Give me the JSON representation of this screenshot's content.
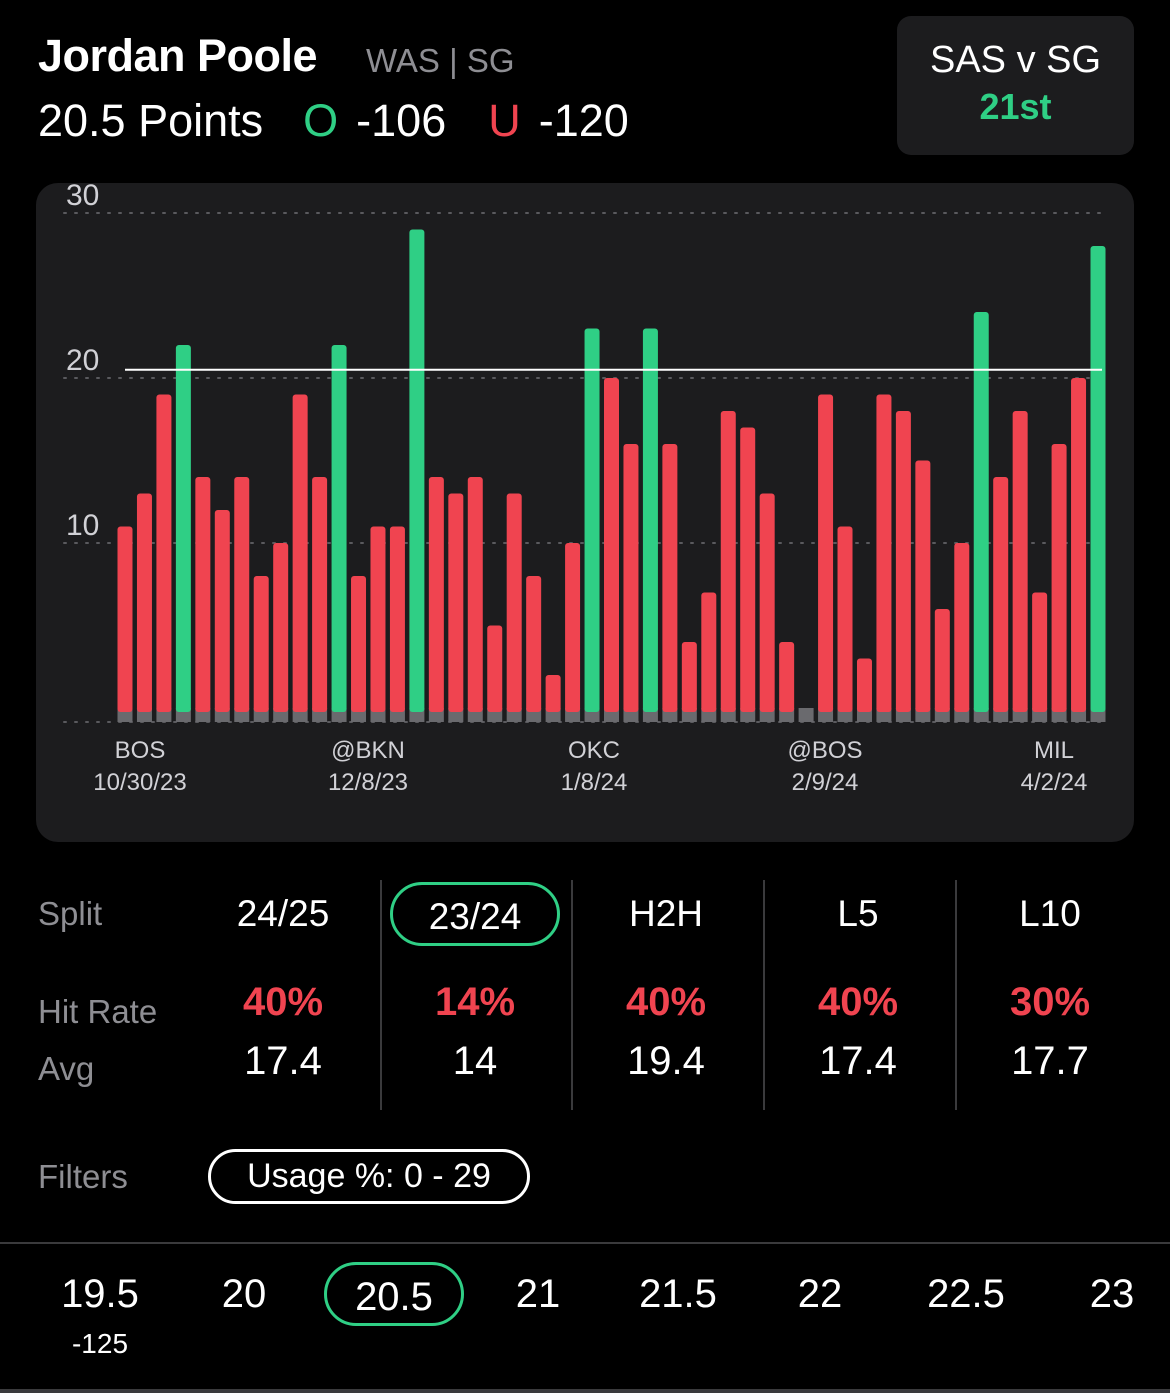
{
  "header": {
    "player_name": "Jordan Poole",
    "team_position": "WAS | SG",
    "prop": "20.5 Points",
    "over_label": "O",
    "over_odds": "-106",
    "under_label": "U",
    "under_odds": "-120"
  },
  "matchup": {
    "title": "SAS v SG",
    "rank": "21st"
  },
  "colors": {
    "over": "#2fcf85",
    "under": "#f04450",
    "card": "#1c1c1e",
    "muted": "#8e8e93"
  },
  "chart_data": {
    "type": "bar",
    "line": 20.5,
    "ylim": [
      -1,
      30
    ],
    "yticks": [
      10,
      20,
      30
    ],
    "grid": "dotted horizontal",
    "values": [
      11,
      13,
      19,
      22,
      14,
      12,
      14,
      8,
      10,
      19,
      14,
      22,
      8,
      11,
      11,
      29,
      14,
      13,
      14,
      5,
      13,
      8,
      2,
      10,
      23,
      20,
      16,
      23,
      16,
      4,
      7,
      18,
      17,
      13,
      4,
      0,
      19,
      11,
      3,
      19,
      18,
      15,
      6,
      10,
      24,
      14,
      18,
      7,
      16,
      20,
      28
    ],
    "x_labels": [
      {
        "team": "BOS",
        "date": "10/30/23"
      },
      {
        "team": "@BKN",
        "date": "12/8/23"
      },
      {
        "team": "OKC",
        "date": "1/8/24"
      },
      {
        "team": "@BOS",
        "date": "2/9/24"
      },
      {
        "team": "MIL",
        "date": "4/2/24"
      }
    ]
  },
  "splits": {
    "row_labels": {
      "split": "Split",
      "hit_rate": "Hit Rate",
      "avg": "Avg"
    },
    "columns": [
      {
        "name": "24/25",
        "hit_rate": "40%",
        "avg": "17.4"
      },
      {
        "name": "23/24",
        "hit_rate": "14%",
        "avg": "14"
      },
      {
        "name": "H2H",
        "hit_rate": "40%",
        "avg": "19.4"
      },
      {
        "name": "L5",
        "hit_rate": "40%",
        "avg": "17.4"
      },
      {
        "name": "L10",
        "hit_rate": "30%",
        "avg": "17.7"
      }
    ],
    "selected": "23/24"
  },
  "filters": {
    "label": "Filters",
    "usage": "Usage %: 0 - 29"
  },
  "lines": {
    "options": [
      {
        "value": "19.5",
        "odds": "-125"
      },
      {
        "value": "20",
        "odds": ""
      },
      {
        "value": "20.5",
        "odds": ""
      },
      {
        "value": "21",
        "odds": ""
      },
      {
        "value": "21.5",
        "odds": ""
      },
      {
        "value": "22",
        "odds": ""
      },
      {
        "value": "22.5",
        "odds": ""
      },
      {
        "value": "23",
        "odds": ""
      }
    ],
    "selected": "20.5"
  }
}
